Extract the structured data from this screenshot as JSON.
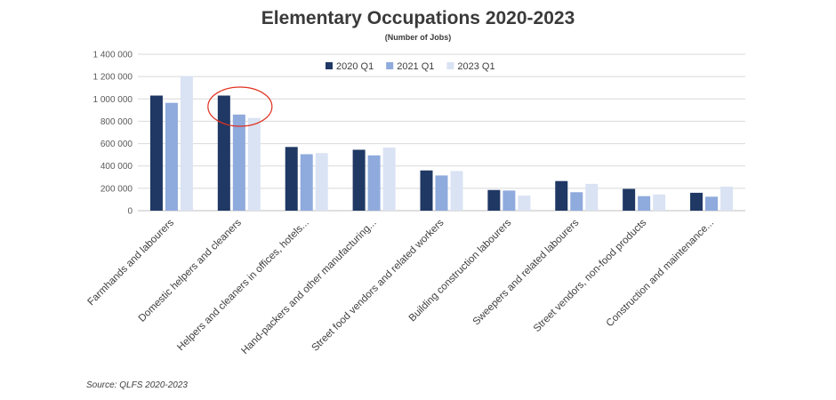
{
  "chart_data": {
    "type": "bar",
    "title": "Elementary Occupations 2020-2023",
    "subtitle": "(Number of Jobs)",
    "xlabel": "",
    "ylabel": "",
    "ylim": [
      0,
      1400000
    ],
    "yticks": [
      0,
      200000,
      400000,
      600000,
      800000,
      1000000,
      1200000,
      1400000
    ],
    "ytick_labels": [
      "0",
      "200 000",
      "400 000",
      "600 000",
      "800 000",
      "1 000 000",
      "1 200 000",
      "1 400 000"
    ],
    "grid": true,
    "legend_position": "top-center",
    "categories": [
      "Farmhands and labourers",
      "Domestic helpers and cleaners",
      "Helpers and cleaners in offices, hotels...",
      "Hand-packers and other manufacturing...",
      "Street food vendors and related workers",
      "Building construction labourers",
      "Sweepers and related labourers",
      "Street vendors, non-food products",
      "Construction and maintenance..."
    ],
    "series": [
      {
        "name": "2020 Q1",
        "color": "#1f3864",
        "values": [
          1030000,
          1030000,
          570000,
          545000,
          360000,
          185000,
          265000,
          195000,
          160000
        ]
      },
      {
        "name": "2021 Q1",
        "color": "#8faadc",
        "values": [
          965000,
          860000,
          505000,
          495000,
          315000,
          180000,
          165000,
          130000,
          125000
        ]
      },
      {
        "name": "2023 Q1",
        "color": "#dae3f3",
        "values": [
          1205000,
          830000,
          515000,
          565000,
          355000,
          135000,
          240000,
          145000,
          215000
        ]
      }
    ],
    "annotations": [
      {
        "type": "circle",
        "category": "Domestic helpers and cleaners",
        "color": "#e0301e"
      }
    ]
  },
  "source": "Source: QLFS 2020-2023"
}
